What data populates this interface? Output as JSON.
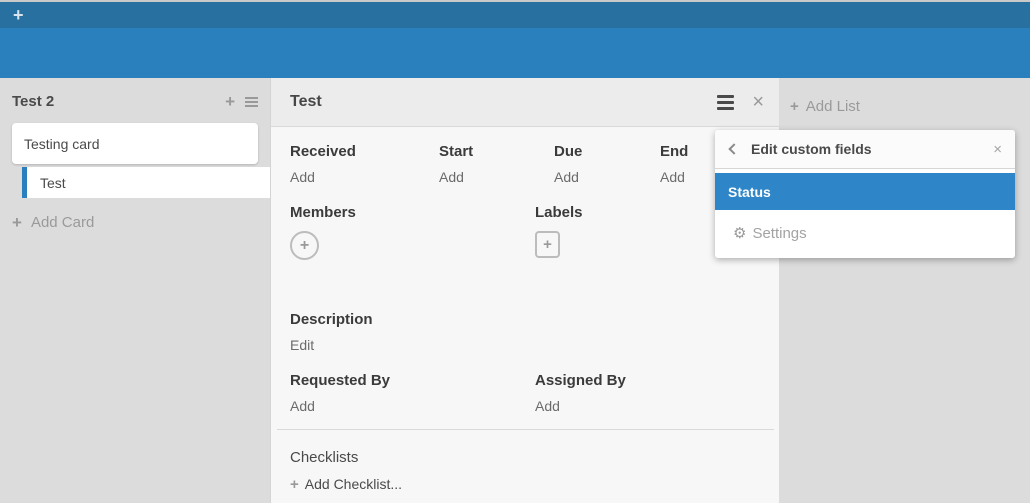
{
  "colors": {
    "topbar_dark": "#27709f",
    "topbar_light": "#2a80bd",
    "board_bg": "#dcdcdc",
    "panel_bg": "#f7f7f7",
    "panel_header_bg": "#ececec",
    "selected_card_accent": "#2b7fbd",
    "popup_selected_bg": "#2e86c8"
  },
  "icons": {
    "plus": "+",
    "close": "×",
    "gear": "⚙"
  },
  "topbar": {
    "add_board_icon": "+"
  },
  "list": {
    "title": "Test 2",
    "cards": [
      {
        "title": "Testing card",
        "selected": false
      },
      {
        "title": "Test",
        "selected": true
      }
    ],
    "add_card_label": "Add Card"
  },
  "card_detail": {
    "title": "Test",
    "date_fields": [
      {
        "label": "Received",
        "action": "Add"
      },
      {
        "label": "Start",
        "action": "Add"
      },
      {
        "label": "Due",
        "action": "Add"
      },
      {
        "label": "End",
        "action": "Add"
      }
    ],
    "members_label": "Members",
    "labels_label": "Labels",
    "description_label": "Description",
    "description_action": "Edit",
    "requested_by_label": "Requested By",
    "requested_by_action": "Add",
    "assigned_by_label": "Assigned By",
    "assigned_by_action": "Add",
    "checklists_label": "Checklists",
    "add_checklist_label": "Add Checklist..."
  },
  "board": {
    "add_list_label": "Add List"
  },
  "popup": {
    "title": "Edit custom fields",
    "items": [
      {
        "label": "Status",
        "selected": true
      },
      {
        "label": "Settings",
        "selected": false
      }
    ]
  }
}
